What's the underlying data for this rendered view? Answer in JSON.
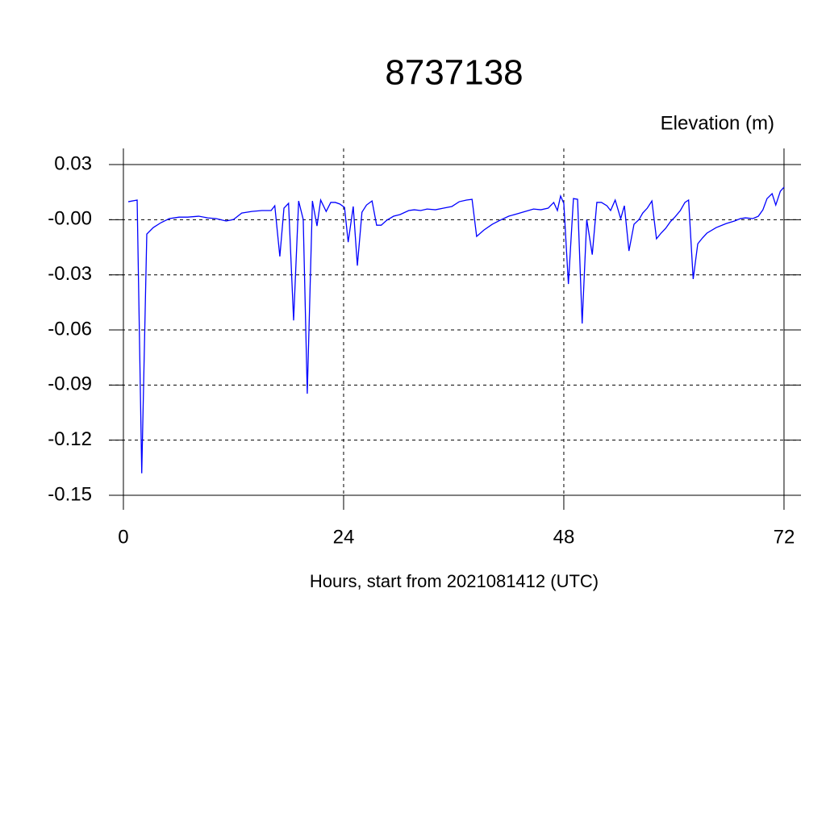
{
  "chart_data": {
    "type": "line",
    "title": "8737138",
    "y_label": "Elevation (m)",
    "x_label": "Hours, start from 2021081412 (UTC)",
    "x": [
      0.53,
      1.5,
      2.0,
      2.55,
      3.25,
      4.1,
      5.0,
      6.07,
      7.0,
      8.2,
      9.2,
      10.1,
      11.2,
      12.0,
      12.9,
      14.0,
      15.1,
      16.1,
      16.5,
      17.05,
      17.5,
      18.0,
      18.55,
      19.1,
      19.6,
      20.04,
      20.6,
      21.1,
      21.5,
      22.1,
      22.6,
      23.1,
      23.6,
      24.1,
      24.5,
      25.05,
      25.5,
      26.0,
      26.5,
      27.1,
      27.6,
      28.1,
      28.7,
      29.45,
      30.15,
      31.1,
      31.7,
      32.4,
      33.1,
      34.0,
      34.9,
      35.8,
      36.6,
      37.4,
      38.0,
      38.5,
      39.3,
      40.2,
      41.05,
      42.0,
      42.9,
      43.8,
      44.7,
      45.5,
      46.3,
      46.9,
      47.3,
      47.65,
      48.0,
      48.5,
      49.05,
      49.5,
      50.0,
      50.5,
      51.1,
      51.6,
      52.1,
      52.7,
      53.1,
      53.6,
      54.2,
      54.6,
      55.1,
      55.65,
      56.2,
      56.6,
      57.1,
      57.6,
      58.1,
      58.6,
      59.1,
      59.6,
      60.1,
      60.7,
      61.2,
      61.6,
      62.1,
      62.6,
      63.1,
      63.6,
      64.6,
      65.7,
      66.6,
      67.25,
      67.8,
      68.6,
      69.2,
      69.7,
      70.15,
      70.7,
      71.1,
      71.6,
      72.0
    ],
    "series": [
      {
        "color": "#0000ff",
        "values": [
          0.0098,
          0.0107,
          -0.138,
          -0.0078,
          -0.0043,
          -0.0016,
          0.0006,
          0.0014,
          0.0014,
          0.0019,
          0.001,
          0.0006,
          -0.0007,
          0.0001,
          0.0036,
          0.0045,
          0.005,
          0.005,
          0.0076,
          -0.02,
          0.0063,
          0.0089,
          -0.0548,
          0.0102,
          0.0001,
          -0.0947,
          0.0102,
          -0.0034,
          0.0107,
          0.0045,
          0.0094,
          0.0094,
          0.0085,
          0.0067,
          -0.0122,
          0.0072,
          -0.025,
          0.0041,
          0.008,
          0.0102,
          -0.003,
          -0.003,
          -0.0003,
          0.0019,
          0.0028,
          0.005,
          0.0054,
          0.005,
          0.0058,
          0.0054,
          0.0063,
          0.0072,
          0.0098,
          0.0107,
          0.0111,
          -0.0091,
          -0.0056,
          -0.0025,
          -0.0003,
          0.0019,
          0.0032,
          0.0045,
          0.0058,
          0.0054,
          0.0063,
          0.0094,
          0.005,
          0.0129,
          0.0089,
          -0.035,
          0.0115,
          0.0111,
          -0.0565,
          0.0001,
          -0.019,
          0.0094,
          0.0094,
          0.0076,
          0.005,
          0.0107,
          0.0006,
          0.0076,
          -0.017,
          -0.0025,
          0.0001,
          0.0036,
          0.0063,
          0.0102,
          -0.0104,
          -0.0073,
          -0.0047,
          -0.0012,
          0.0014,
          0.005,
          0.0094,
          0.0107,
          -0.0323,
          -0.0131,
          -0.01,
          -0.0073,
          -0.0043,
          -0.0021,
          -0.0007,
          0.0006,
          0.001,
          0.0006,
          0.0019,
          0.0054,
          0.0115,
          0.0142,
          0.008,
          0.0155,
          0.0177
        ]
      }
    ],
    "xlim": [
      -1.58,
      73.85
    ],
    "ylim": [
      -0.1579,
      0.0388
    ],
    "xticks": [
      0,
      24,
      48,
      72
    ],
    "yticks": [
      0.03,
      {
        "value": 0,
        "label": "-0.00"
      },
      -0.03,
      -0.06,
      -0.09,
      -0.12,
      -0.15
    ],
    "grid": true
  }
}
